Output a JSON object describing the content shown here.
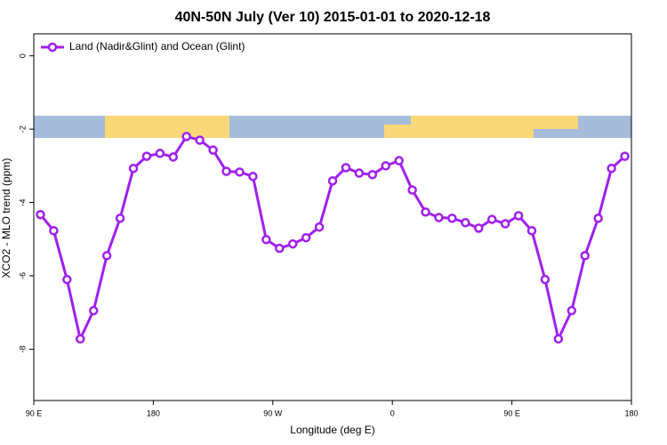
{
  "chart_data": {
    "type": "line",
    "title": "40N-50N July (Ver 10)   2015-01-01 to 2020-12-18",
    "xlabel": "Longitude (deg E)",
    "ylabel": "XCO2 - MLO trend (ppm)",
    "x": [
      95,
      105,
      115,
      125,
      135,
      145,
      155,
      165,
      175,
      185,
      195,
      205,
      215,
      225,
      235,
      245,
      255,
      265,
      275,
      285,
      295,
      305,
      315,
      325,
      335,
      345,
      355,
      365,
      375,
      385,
      395,
      405,
      415,
      425,
      435,
      445,
      455,
      465,
      475,
      485,
      495,
      505,
      515,
      525,
      535
    ],
    "series": [
      {
        "name": "Land (Nadir&Glint) and Ocean (Glint)",
        "color": "#a020f0",
        "values": [
          -4.33,
          -4.77,
          -6.1,
          -7.72,
          -6.95,
          -5.45,
          -4.43,
          -3.07,
          -2.74,
          -2.66,
          -2.76,
          -2.2,
          -2.3,
          -2.57,
          -3.15,
          -3.17,
          -3.29,
          -5.01,
          -5.25,
          -5.13,
          -4.96,
          -4.67,
          -3.41,
          -3.05,
          -3.2,
          -3.24,
          -3.0,
          -2.86,
          -3.66,
          -4.26,
          -4.41,
          -4.43,
          -4.55,
          -4.7,
          -4.46,
          -4.58,
          -4.36,
          -4.77,
          -6.1,
          -7.72,
          -6.95,
          -5.45,
          -4.43,
          -3.07,
          -2.74
        ]
      }
    ],
    "xlim": [
      90,
      540
    ],
    "xticks": [
      {
        "value": 90,
        "label": "90 E"
      },
      180,
      {
        "value": 270,
        "label": "90 W"
      },
      {
        "value": 360,
        "label": "0"
      },
      {
        "value": 450,
        "label": "90 E"
      },
      {
        "value": 540,
        "label": "180"
      }
    ],
    "ylim": [
      -9.4,
      0.6
    ],
    "yticks": [
      0,
      -2,
      -4,
      -6,
      -8
    ],
    "legend": "upper left"
  }
}
